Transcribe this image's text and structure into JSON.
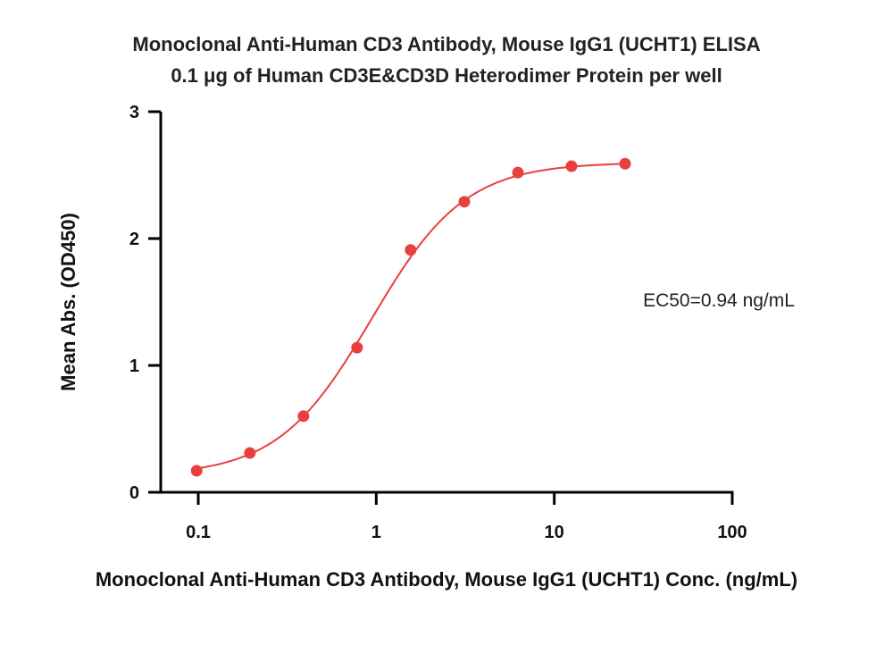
{
  "chart_data": {
    "type": "scatter",
    "title": "Monoclonal Anti-Human CD3 Antibody, Mouse IgG1 (UCHT1) ELISA",
    "subtitle": "0.1 μg of Human CD3E&CD3D Heterodimer Protein per well",
    "xlabel": "Monoclonal Anti-Human CD3 Antibody, Mouse IgG1 (UCHT1) Conc. (ng/mL)",
    "ylabel": "Mean Abs. (OD450)",
    "xscale": "log",
    "xlim": [
      0.1,
      100
    ],
    "ylim": [
      0,
      3
    ],
    "xticks": [
      0.1,
      1,
      10,
      100
    ],
    "xtick_labels": [
      "0.1",
      "1",
      "10",
      "100"
    ],
    "yticks": [
      0,
      1,
      2,
      3
    ],
    "ytick_labels": [
      "0",
      "1",
      "2",
      "3"
    ],
    "grid": false,
    "color": "#e8403f",
    "series": [
      {
        "x": [
          0.098,
          0.195,
          0.39,
          0.78,
          1.56,
          3.125,
          6.25,
          12.5,
          25
        ],
        "y": [
          0.17,
          0.31,
          0.6,
          1.14,
          1.91,
          2.29,
          2.52,
          2.57,
          2.59
        ]
      }
    ],
    "fit": {
      "bottom": 0.13,
      "top": 2.6,
      "ec50": 0.94,
      "hill": 1.65,
      "x_range": [
        0.098,
        25
      ]
    },
    "annotation": "EC50=0.94 ng/mL"
  }
}
